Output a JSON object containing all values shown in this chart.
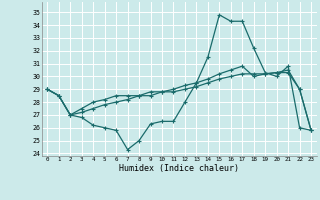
{
  "xlabel": "Humidex (Indice chaleur)",
  "x_ticks": [
    0,
    1,
    2,
    3,
    4,
    5,
    6,
    7,
    8,
    9,
    10,
    11,
    12,
    13,
    14,
    15,
    16,
    17,
    18,
    19,
    20,
    21,
    22,
    23
  ],
  "ylim": [
    23.8,
    35.8
  ],
  "xlim": [
    -0.5,
    23.5
  ],
  "yticks": [
    24,
    25,
    26,
    27,
    28,
    29,
    30,
    31,
    32,
    33,
    34,
    35
  ],
  "bg_color": "#cceaea",
  "line_color": "#1a6b6b",
  "grid_color": "#ffffff",
  "series1_y": [
    29.0,
    28.5,
    27.0,
    26.8,
    26.2,
    26.0,
    25.8,
    24.3,
    25.0,
    26.3,
    26.5,
    26.5,
    28.0,
    29.5,
    31.5,
    34.8,
    34.3,
    34.3,
    32.2,
    30.3,
    30.0,
    30.8,
    26.0,
    25.8
  ],
  "series2_y": [
    29.0,
    28.5,
    27.0,
    27.2,
    27.5,
    27.8,
    28.0,
    28.2,
    28.5,
    28.5,
    28.8,
    28.8,
    29.0,
    29.2,
    29.5,
    29.8,
    30.0,
    30.2,
    30.2,
    30.2,
    30.3,
    30.3,
    29.0,
    25.8
  ],
  "series3_y": [
    29.0,
    28.5,
    27.0,
    27.5,
    28.0,
    28.2,
    28.5,
    28.5,
    28.5,
    28.8,
    28.8,
    29.0,
    29.3,
    29.5,
    29.8,
    30.2,
    30.5,
    30.8,
    30.0,
    30.2,
    30.3,
    30.5,
    29.0,
    25.8
  ]
}
